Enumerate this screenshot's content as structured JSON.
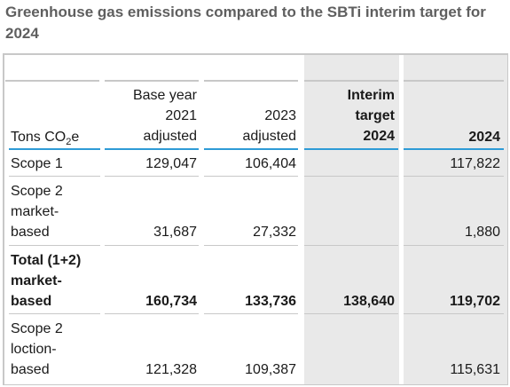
{
  "title": "Greenhouse gas emissions compared to the SBTi interim target for 2024",
  "header": {
    "unit_prefix": "Tons CO",
    "unit_sub": "2",
    "unit_suffix": "e",
    "col1": [
      "Base year",
      "2021",
      "adjusted"
    ],
    "col2": [
      "2023",
      "adjusted"
    ],
    "col3": [
      "Interim",
      "target",
      "2024"
    ],
    "col4": [
      "2024"
    ]
  },
  "rows": [
    {
      "label": [
        "Scope 1"
      ],
      "values": [
        "129,047",
        "106,404",
        "",
        "117,822"
      ],
      "bold": false
    },
    {
      "label": [
        "Scope 2",
        "market-",
        "based"
      ],
      "values": [
        "31,687",
        "27,332",
        "",
        "1,880"
      ],
      "bold": false
    },
    {
      "label": [
        "Total (1+2)",
        "market-",
        "based"
      ],
      "values": [
        "160,734",
        "133,736",
        "138,640",
        "119,702"
      ],
      "bold": true
    },
    {
      "label": [
        "Scope 2",
        "loction-",
        "based"
      ],
      "values": [
        "121,328",
        "109,387",
        "",
        "115,631"
      ],
      "bold": false
    }
  ],
  "colors": {
    "accent_line": "#2e9bd6",
    "shade": "#e9e9e9",
    "title": "#5f5f5f"
  }
}
